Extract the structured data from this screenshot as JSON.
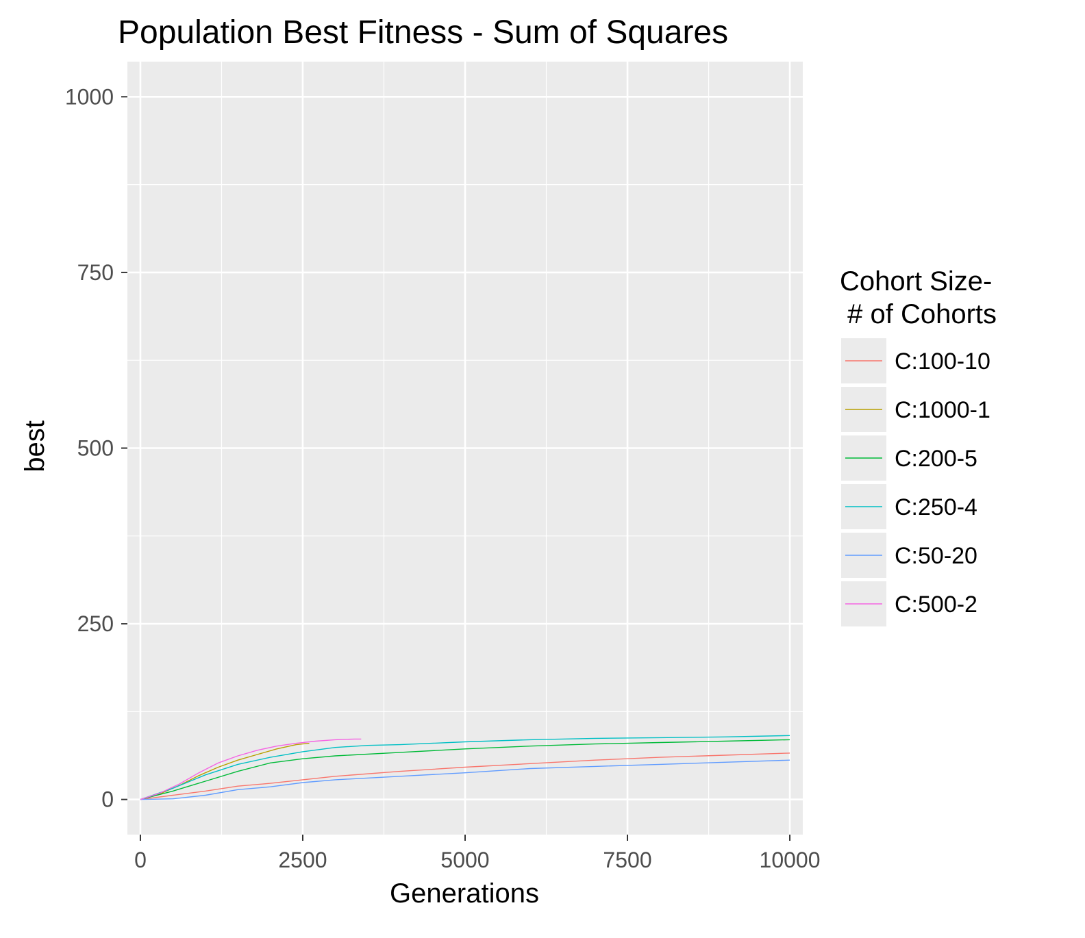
{
  "chart_data": {
    "type": "line",
    "title": "Population Best Fitness - Sum of Squares",
    "xlabel": "Generations",
    "ylabel": "best",
    "xlim": [
      -200,
      10200
    ],
    "ylim": [
      -50,
      1050
    ],
    "xticks": [
      0,
      2500,
      5000,
      7500,
      10000
    ],
    "yticks": [
      0,
      250,
      500,
      750,
      1000
    ],
    "grid": true,
    "legend": {
      "title_line1": "Cohort Size-",
      "title_line2": " # of Cohorts",
      "placement": "right"
    },
    "series": [
      {
        "name": "C:100-10",
        "color": "#F8766D",
        "points": [
          [
            0,
            0
          ],
          [
            500,
            6
          ],
          [
            1000,
            12
          ],
          [
            1500,
            19
          ],
          [
            2000,
            23
          ],
          [
            2500,
            28
          ],
          [
            3000,
            33
          ],
          [
            4000,
            40
          ],
          [
            5000,
            46
          ],
          [
            6000,
            51
          ],
          [
            7000,
            56
          ],
          [
            8000,
            60
          ],
          [
            9000,
            63
          ],
          [
            10000,
            66
          ]
        ]
      },
      {
        "name": "C:1000-1",
        "color": "#B79F00",
        "points": [
          [
            0,
            0
          ],
          [
            300,
            8
          ],
          [
            600,
            20
          ],
          [
            900,
            34
          ],
          [
            1200,
            46
          ],
          [
            1500,
            56
          ],
          [
            1800,
            64
          ],
          [
            2100,
            72
          ],
          [
            2400,
            78
          ],
          [
            2600,
            80
          ]
        ]
      },
      {
        "name": "C:200-5",
        "color": "#00BA38",
        "points": [
          [
            0,
            0
          ],
          [
            500,
            12
          ],
          [
            1000,
            26
          ],
          [
            1500,
            40
          ],
          [
            2000,
            52
          ],
          [
            2500,
            58
          ],
          [
            3000,
            62
          ],
          [
            4000,
            67
          ],
          [
            5000,
            72
          ],
          [
            6000,
            76
          ],
          [
            7000,
            79
          ],
          [
            8000,
            81
          ],
          [
            9000,
            83
          ],
          [
            10000,
            85
          ]
        ]
      },
      {
        "name": "C:250-4",
        "color": "#00BFC4",
        "points": [
          [
            0,
            0
          ],
          [
            500,
            16
          ],
          [
            1000,
            35
          ],
          [
            1500,
            50
          ],
          [
            2000,
            60
          ],
          [
            2500,
            68
          ],
          [
            3000,
            74
          ],
          [
            3500,
            77
          ],
          [
            4000,
            78
          ],
          [
            5000,
            82
          ],
          [
            6000,
            85
          ],
          [
            7000,
            87
          ],
          [
            8000,
            88
          ],
          [
            9000,
            89
          ],
          [
            10000,
            91
          ]
        ]
      },
      {
        "name": "C:50-20",
        "color": "#619CFF",
        "points": [
          [
            0,
            0
          ],
          [
            500,
            1
          ],
          [
            1000,
            6
          ],
          [
            1500,
            14
          ],
          [
            2000,
            18
          ],
          [
            2500,
            24
          ],
          [
            3000,
            28
          ],
          [
            4000,
            33
          ],
          [
            5000,
            38
          ],
          [
            6000,
            44
          ],
          [
            7000,
            47
          ],
          [
            8000,
            50
          ],
          [
            9000,
            53
          ],
          [
            10000,
            56
          ]
        ]
      },
      {
        "name": "C:500-2",
        "color": "#F564E3",
        "points": [
          [
            0,
            0
          ],
          [
            300,
            9
          ],
          [
            600,
            22
          ],
          [
            900,
            38
          ],
          [
            1200,
            52
          ],
          [
            1500,
            62
          ],
          [
            1800,
            70
          ],
          [
            2100,
            76
          ],
          [
            2400,
            80
          ],
          [
            2700,
            83
          ],
          [
            3000,
            85
          ],
          [
            3300,
            86
          ],
          [
            3400,
            86
          ]
        ]
      }
    ]
  }
}
